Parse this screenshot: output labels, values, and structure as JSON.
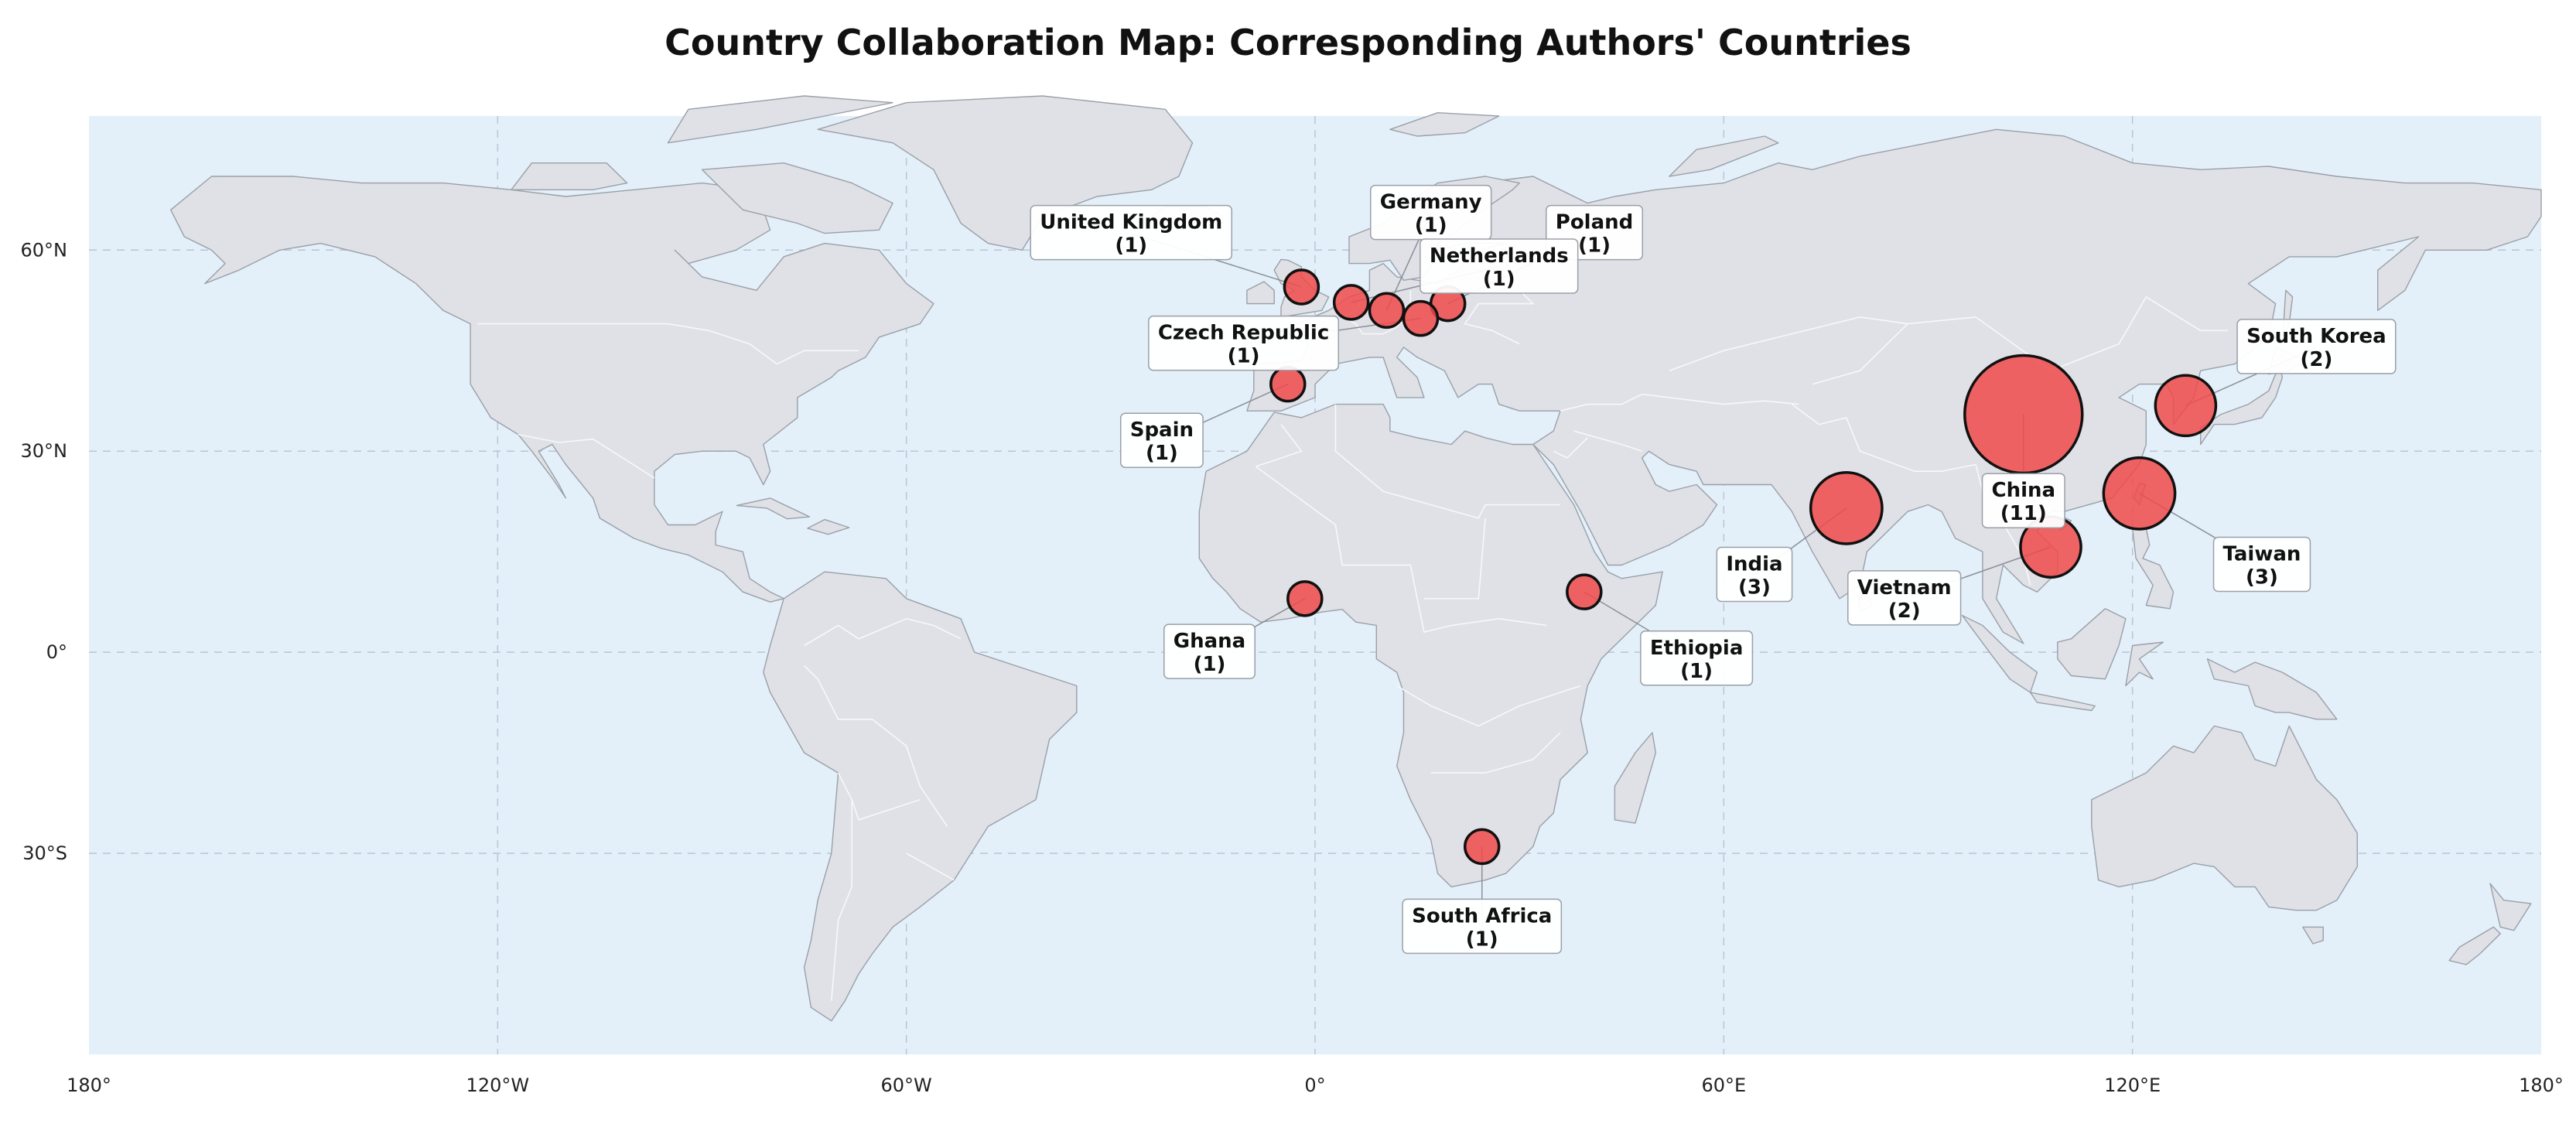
{
  "chart_data": {
    "type": "bubble-map",
    "title": "Country Collaboration Map: Corresponding Authors' Countries",
    "projection": "equirectangular",
    "xlim": [
      -180,
      180
    ],
    "ylim": [
      -60,
      80
    ],
    "grid": true,
    "x_ticks": [
      {
        "value": -180,
        "label": "180°"
      },
      {
        "value": -120,
        "label": "120°W"
      },
      {
        "value": -60,
        "label": "60°W"
      },
      {
        "value": 0,
        "label": "0°"
      },
      {
        "value": 60,
        "label": "60°E"
      },
      {
        "value": 120,
        "label": "120°E"
      },
      {
        "value": 180,
        "label": "180°"
      }
    ],
    "y_ticks": [
      {
        "value": 60,
        "label": "60°N"
      },
      {
        "value": 30,
        "label": "30°N"
      },
      {
        "value": 0,
        "label": "0°"
      },
      {
        "value": -30,
        "label": "30°S"
      }
    ],
    "colors": {
      "ocean": "#e3eff9",
      "land": "#dfe1e6",
      "land_border": "#f7f8fa",
      "coast": "#9aa0a8",
      "bubble": "#f04a4a",
      "bubble_edge": "#111111"
    },
    "points": [
      {
        "country": "China",
        "count": 11,
        "lon": 104,
        "lat": 35.5,
        "label": "China",
        "count_label": "(11)",
        "label_lon": 104,
        "label_lat": 22.5
      },
      {
        "country": "India",
        "count": 3,
        "lon": 78,
        "lat": 21.5,
        "label": "India",
        "count_label": "(3)",
        "label_lon": 64.5,
        "label_lat": 11.5
      },
      {
        "country": "Taiwan",
        "count": 3,
        "lon": 121,
        "lat": 23.7,
        "label": "Taiwan",
        "count_label": "(3)",
        "label_lon": 139,
        "label_lat": 13
      },
      {
        "country": "South Korea",
        "count": 2,
        "lon": 127.8,
        "lat": 36.8,
        "label": "South Korea",
        "count_label": "(2)",
        "label_lon": 147,
        "label_lat": 45.5
      },
      {
        "country": "Vietnam",
        "count": 2,
        "lon": 108,
        "lat": 15.7,
        "label": "Vietnam",
        "count_label": "(2)",
        "label_lon": 86.5,
        "label_lat": 8
      },
      {
        "country": "United Kingdom",
        "count": 1,
        "lon": -2,
        "lat": 54.5,
        "label": "United Kingdom",
        "count_label": "(1)",
        "label_lon": -27,
        "label_lat": 62.5
      },
      {
        "country": "Germany",
        "count": 1,
        "lon": 10.5,
        "lat": 51,
        "label": "Germany",
        "count_label": "(1)",
        "label_lon": 17,
        "label_lat": 65.5
      },
      {
        "country": "Poland",
        "count": 1,
        "lon": 19.5,
        "lat": 52,
        "label": "Poland",
        "count_label": "(1)",
        "label_lon": 41,
        "label_lat": 62.5
      },
      {
        "country": "Netherlands",
        "count": 1,
        "lon": 5.3,
        "lat": 52.2,
        "label": "Netherlands",
        "count_label": "(1)",
        "label_lon": 27,
        "label_lat": 57.5
      },
      {
        "country": "Czech Republic",
        "count": 1,
        "lon": 15.5,
        "lat": 49.8,
        "label": "Czech Republic",
        "count_label": "(1)",
        "label_lon": -10.5,
        "label_lat": 46
      },
      {
        "country": "Spain",
        "count": 1,
        "lon": -4,
        "lat": 40,
        "label": "Spain",
        "count_label": "(1)",
        "label_lon": -22.5,
        "label_lat": 31.5
      },
      {
        "country": "Ghana",
        "count": 1,
        "lon": -1.5,
        "lat": 8,
        "label": "Ghana",
        "count_label": "(1)",
        "label_lon": -15.5,
        "label_lat": 0
      },
      {
        "country": "Ethiopia",
        "count": 1,
        "lon": 39.5,
        "lat": 9,
        "label": "Ethiopia",
        "count_label": "(1)",
        "label_lon": 56,
        "label_lat": -1
      },
      {
        "country": "South Africa",
        "count": 1,
        "lon": 24.5,
        "lat": -29,
        "label": "South Africa",
        "count_label": "(1)",
        "label_lon": 24.5,
        "label_lat": -41
      }
    ]
  }
}
